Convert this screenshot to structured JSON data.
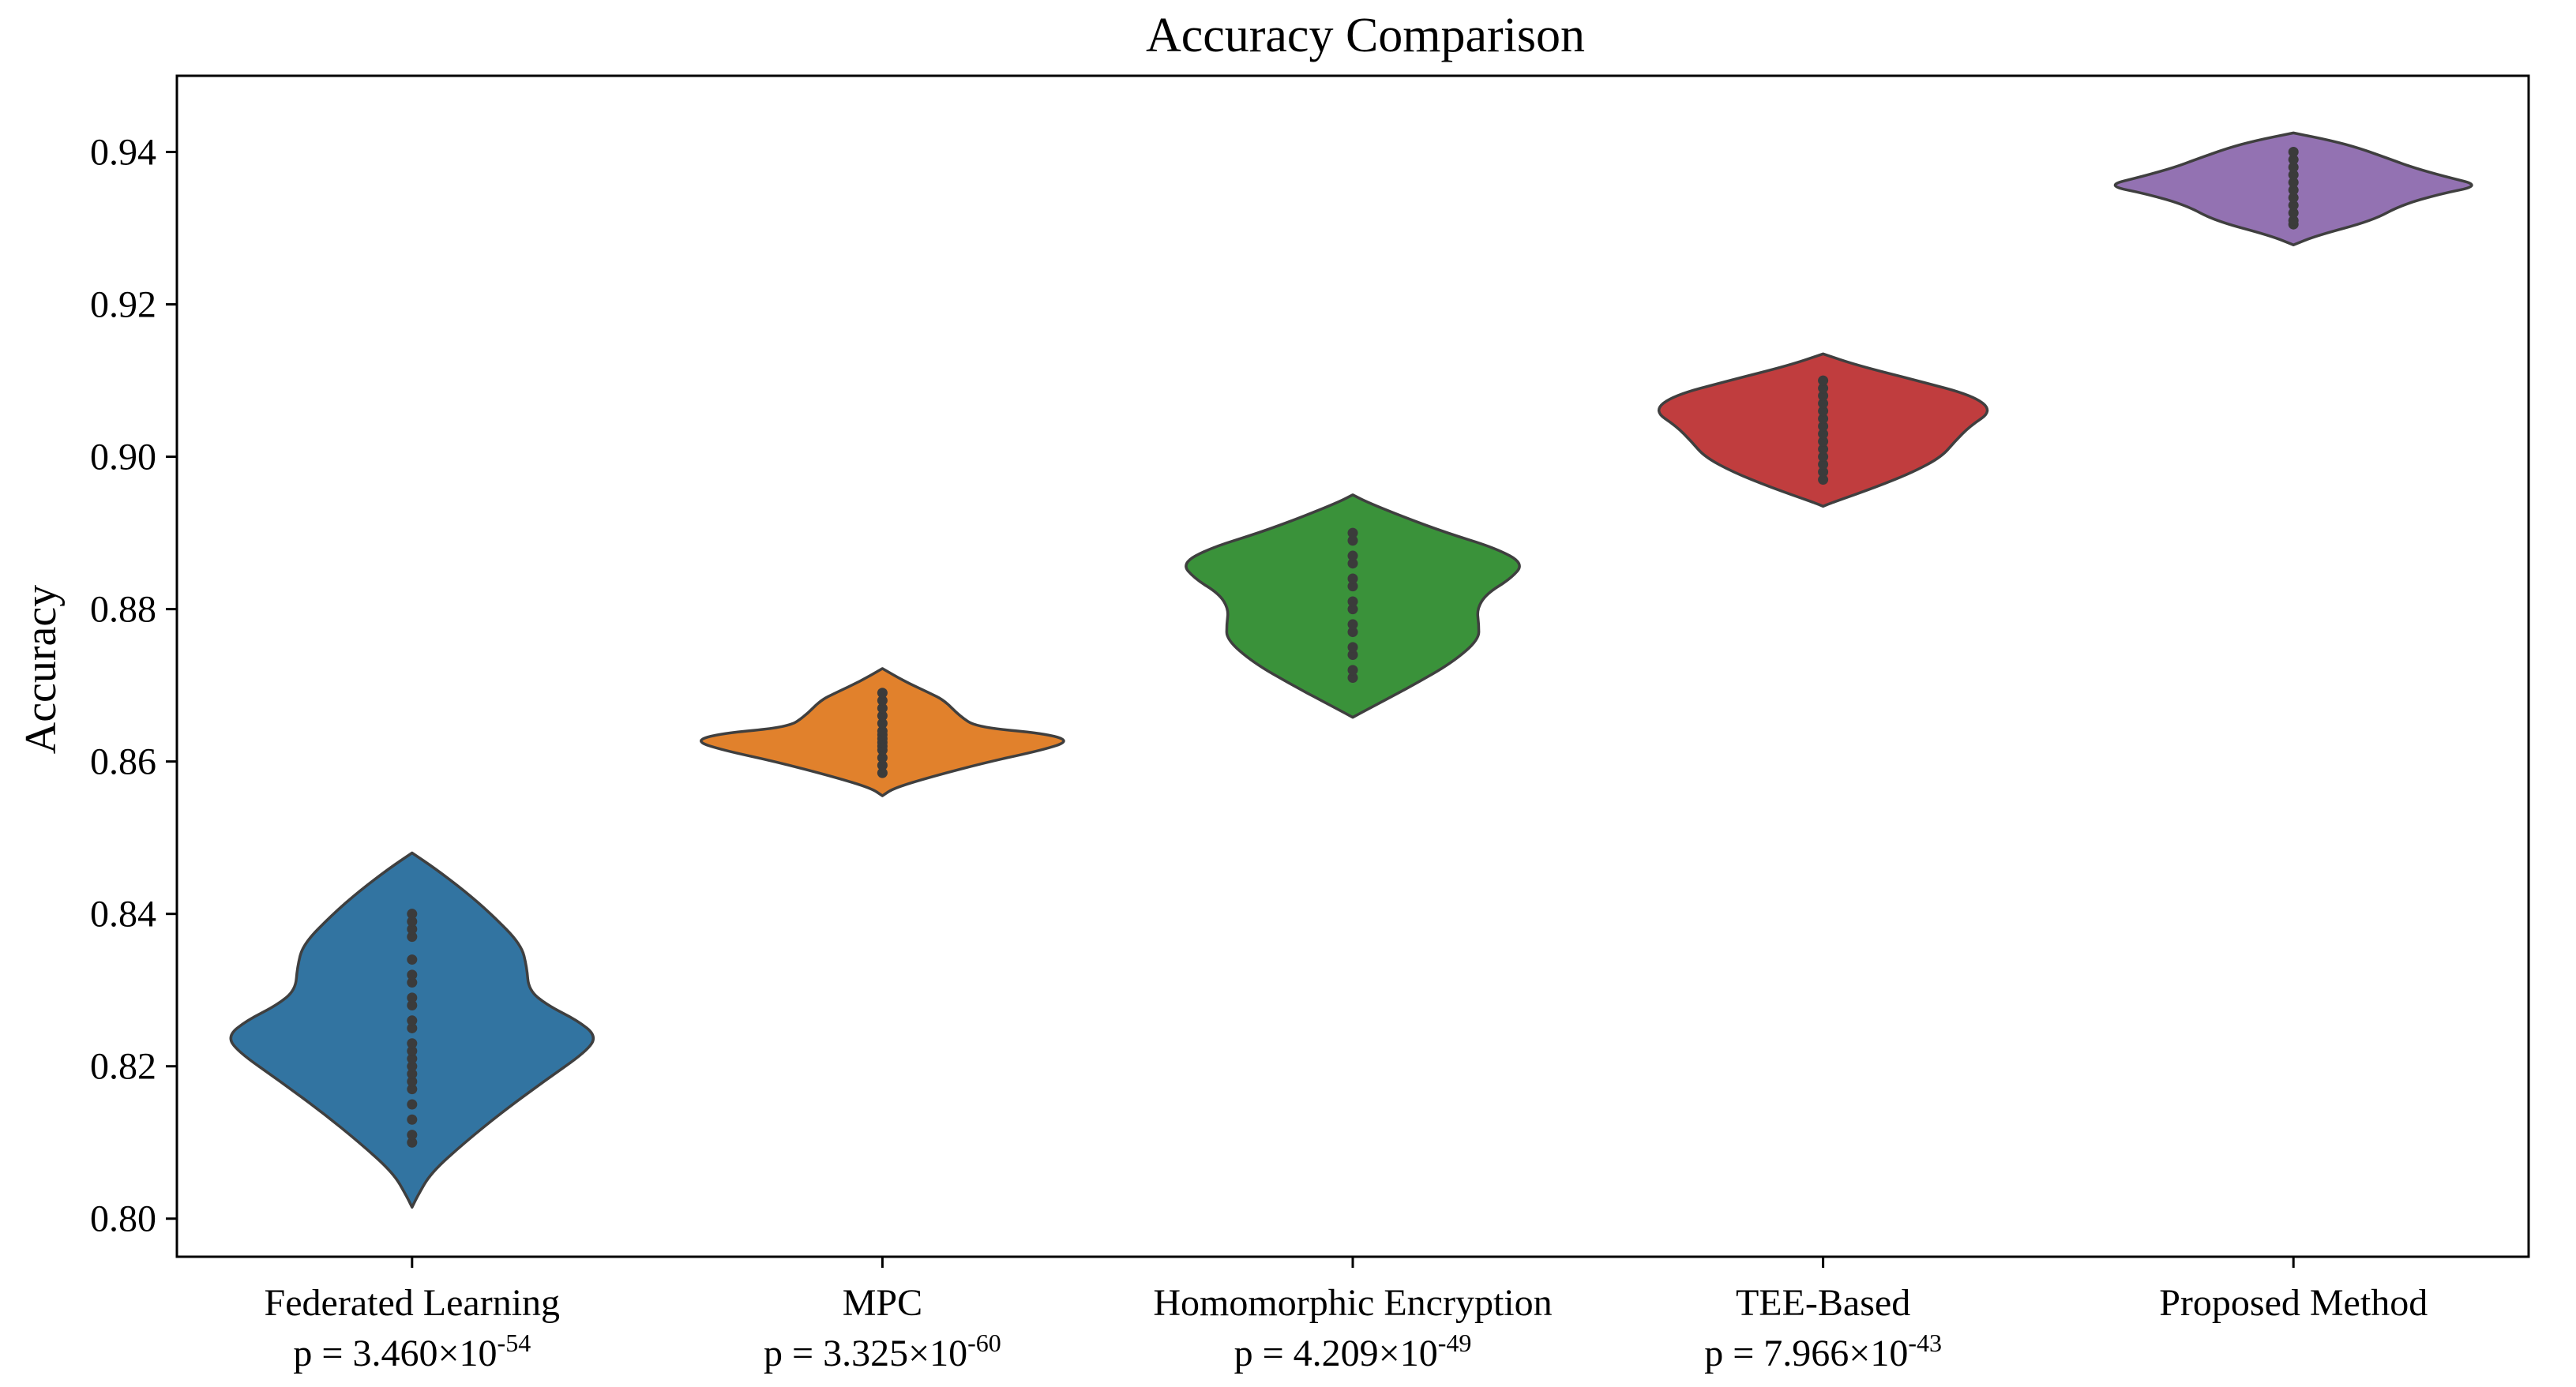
{
  "chart_data": {
    "type": "violin",
    "title": "Accuracy Comparison",
    "xlabel": "",
    "ylabel": "Accuracy",
    "ylim": [
      0.795,
      0.95
    ],
    "yticks": [
      0.8,
      0.82,
      0.84,
      0.86,
      0.88,
      0.9,
      0.92,
      0.94
    ],
    "ytick_labels": [
      "0.80",
      "0.82",
      "0.84",
      "0.86",
      "0.88",
      "0.90",
      "0.92",
      "0.94"
    ],
    "grid": false,
    "series": [
      {
        "name": "Federated Learning",
        "p_label": "p = 3.460×10",
        "p_exponent": "-54",
        "color": "#3274a1",
        "min": 0.8015,
        "max": 0.848,
        "density": [
          [
            0.8015,
            0.0
          ],
          [
            0.803,
            0.03
          ],
          [
            0.806,
            0.1
          ],
          [
            0.81,
            0.28
          ],
          [
            0.814,
            0.48
          ],
          [
            0.818,
            0.7
          ],
          [
            0.822,
            0.93
          ],
          [
            0.824,
            0.98
          ],
          [
            0.826,
            0.88
          ],
          [
            0.828,
            0.72
          ],
          [
            0.83,
            0.62
          ],
          [
            0.833,
            0.61
          ],
          [
            0.836,
            0.58
          ],
          [
            0.84,
            0.42
          ],
          [
            0.843,
            0.28
          ],
          [
            0.846,
            0.12
          ],
          [
            0.848,
            0.0
          ]
        ],
        "points": [
          0.81,
          0.811,
          0.813,
          0.815,
          0.817,
          0.818,
          0.819,
          0.82,
          0.821,
          0.822,
          0.823,
          0.825,
          0.826,
          0.828,
          0.829,
          0.831,
          0.832,
          0.834,
          0.837,
          0.838,
          0.839,
          0.84
        ]
      },
      {
        "name": "MPC",
        "p_label": "p = 3.325×10",
        "p_exponent": "-60",
        "color": "#e1812c",
        "min": 0.8555,
        "max": 0.8722,
        "density": [
          [
            0.8555,
            0.0
          ],
          [
            0.8565,
            0.06
          ],
          [
            0.858,
            0.26
          ],
          [
            0.86,
            0.57
          ],
          [
            0.8615,
            0.85
          ],
          [
            0.8627,
            1.0
          ],
          [
            0.8637,
            0.86
          ],
          [
            0.8645,
            0.5
          ],
          [
            0.866,
            0.41
          ],
          [
            0.868,
            0.33
          ],
          [
            0.869,
            0.25
          ],
          [
            0.8705,
            0.12
          ],
          [
            0.8722,
            0.0
          ]
        ],
        "points": [
          0.8585,
          0.8595,
          0.8605,
          0.8615,
          0.862,
          0.8625,
          0.863,
          0.8635,
          0.864,
          0.865,
          0.866,
          0.867,
          0.868,
          0.869
        ]
      },
      {
        "name": "Homomorphic Encryption",
        "p_label": "p = 4.209×10",
        "p_exponent": "-49",
        "color": "#3a923a",
        "min": 0.8658,
        "max": 0.895,
        "density": [
          [
            0.8658,
            0.0
          ],
          [
            0.867,
            0.09
          ],
          [
            0.87,
            0.32
          ],
          [
            0.873,
            0.53
          ],
          [
            0.876,
            0.67
          ],
          [
            0.878,
            0.67
          ],
          [
            0.88,
            0.66
          ],
          [
            0.882,
            0.71
          ],
          [
            0.884,
            0.84
          ],
          [
            0.886,
            0.91
          ],
          [
            0.888,
            0.76
          ],
          [
            0.89,
            0.5
          ],
          [
            0.892,
            0.28
          ],
          [
            0.894,
            0.08
          ],
          [
            0.895,
            0.0
          ]
        ],
        "points": [
          0.871,
          0.872,
          0.874,
          0.875,
          0.877,
          0.878,
          0.88,
          0.881,
          0.883,
          0.884,
          0.886,
          0.887,
          0.889,
          0.89
        ]
      },
      {
        "name": "TEE-Based",
        "p_label": "p = 7.966×10",
        "p_exponent": "-43",
        "color": "#c03d3e",
        "min": 0.8935,
        "max": 0.9135,
        "density": [
          [
            0.8935,
            0.0
          ],
          [
            0.894,
            0.05
          ],
          [
            0.896,
            0.28
          ],
          [
            0.898,
            0.48
          ],
          [
            0.9,
            0.63
          ],
          [
            0.902,
            0.7
          ],
          [
            0.904,
            0.78
          ],
          [
            0.906,
            0.9
          ],
          [
            0.908,
            0.8
          ],
          [
            0.91,
            0.5
          ],
          [
            0.912,
            0.18
          ],
          [
            0.9135,
            0.0
          ]
        ],
        "points": [
          0.897,
          0.898,
          0.899,
          0.9,
          0.901,
          0.902,
          0.903,
          0.904,
          0.905,
          0.906,
          0.907,
          0.908,
          0.909,
          0.91
        ]
      },
      {
        "name": "Proposed Method",
        "p_label": "",
        "p_exponent": "",
        "color": "#9372b2",
        "min": 0.9278,
        "max": 0.9425,
        "density": [
          [
            0.9278,
            0.0
          ],
          [
            0.929,
            0.12
          ],
          [
            0.931,
            0.42
          ],
          [
            0.933,
            0.57
          ],
          [
            0.9345,
            0.78
          ],
          [
            0.9356,
            1.0
          ],
          [
            0.9368,
            0.8
          ],
          [
            0.938,
            0.63
          ],
          [
            0.939,
            0.52
          ],
          [
            0.9405,
            0.35
          ],
          [
            0.9415,
            0.2
          ],
          [
            0.9425,
            0.0
          ]
        ],
        "points": [
          0.9305,
          0.931,
          0.932,
          0.933,
          0.934,
          0.935,
          0.936,
          0.937,
          0.938,
          0.939,
          0.94
        ]
      }
    ]
  }
}
